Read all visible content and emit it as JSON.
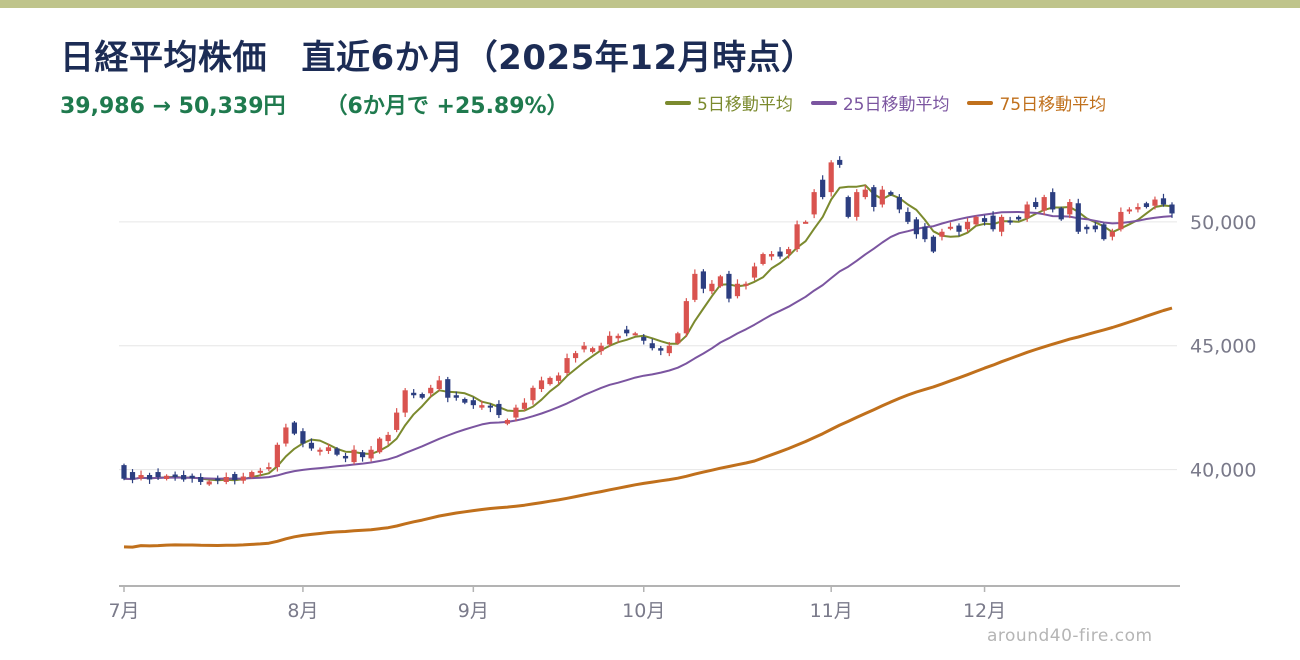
{
  "title": "日経平均株価　直近6か月（2025年12月時点）",
  "subtitle": {
    "range": "39,986 → 50,339円",
    "change": "（6か月で +25.89%）"
  },
  "legend": [
    {
      "label": "5日移動平均",
      "color": "#7b8a2e"
    },
    {
      "label": "25日移動平均",
      "color": "#7b55a0"
    },
    {
      "label": "75日移動平均",
      "color": "#c0701c"
    }
  ],
  "watermark": "around40-fire.com",
  "colors": {
    "top_bar": "#bfc48b",
    "title": "#1c2c55",
    "subtitle": "#1f7a4e",
    "up_candle": "#d9534f",
    "down_candle": "#2c3e80",
    "grid": "#e6e6e6",
    "axis": "#b3b3b3",
    "tick_text": "#7a7a8a"
  },
  "chart_data": {
    "type": "candlestick",
    "title": "日経平均株価　直近6か月（2025年12月時点）",
    "y_ticks": [
      "40,000",
      "45,000",
      "50,000"
    ],
    "y_tick_values": [
      40000,
      45000,
      50000
    ],
    "ylim": [
      35300,
      52900
    ],
    "x_tick_labels": [
      "7月",
      "8月",
      "9月",
      "10月",
      "11月",
      "12月"
    ],
    "x_tick_index": [
      0,
      21,
      41,
      61,
      83,
      101
    ],
    "grid": true,
    "legend_position": "top",
    "start_value": 39986,
    "end_value": 50339,
    "change_pct": 25.89,
    "close": [
      39630,
      39600,
      39780,
      39600,
      39700,
      39750,
      39700,
      39600,
      39650,
      39500,
      39520,
      39560,
      39700,
      39580,
      39720,
      39900,
      39950,
      40100,
      41000,
      41700,
      41450,
      41050,
      40850,
      40800,
      40900,
      40600,
      40450,
      40800,
      40500,
      40800,
      41250,
      41400,
      42300,
      43200,
      43000,
      42900,
      43300,
      43600,
      42900,
      42900,
      42700,
      42600,
      42600,
      42500,
      42200,
      42000,
      42500,
      42700,
      43300,
      43600,
      43700,
      43800,
      44500,
      44700,
      45000,
      44900,
      45000,
      45400,
      45400,
      45500,
      45500,
      45200,
      44900,
      44800,
      45000,
      45500,
      46800,
      47900,
      47300,
      47500,
      47800,
      46900,
      47500,
      47500,
      48200,
      48700,
      48700,
      48600,
      48900,
      49900,
      50000,
      51200,
      51000,
      52400,
      52300,
      50200,
      51200,
      51300,
      50600,
      51300,
      51100,
      50500,
      50000,
      49500,
      49300,
      48800,
      49600,
      49800,
      49600,
      50000,
      50200,
      50000,
      49700,
      50200,
      50000,
      50100,
      50700,
      50600,
      51000,
      50500,
      50100,
      50800,
      49600,
      49700,
      49700,
      49300,
      49600,
      50400,
      50500,
      50600,
      50600,
      50900,
      50700,
      50339
    ],
    "open": [
      40180,
      39900,
      39650,
      39780,
      39900,
      39620,
      39800,
      39780,
      39750,
      39700,
      39400,
      39640,
      39500,
      39820,
      39550,
      39700,
      39880,
      40020,
      40100,
      41050,
      41900,
      41550,
      41080,
      40750,
      40750,
      40850,
      40550,
      40300,
      40700,
      40450,
      40700,
      41150,
      41600,
      42300,
      43100,
      43050,
      43080,
      43250,
      43650,
      43000,
      42850,
      42800,
      42500,
      42580,
      42650,
      41850,
      42100,
      42450,
      42800,
      43250,
      43450,
      43580,
      43900,
      44500,
      44850,
      44750,
      44780,
      45050,
      45300,
      45650,
      45470,
      45350,
      45100,
      44900,
      44700,
      45100,
      45500,
      46850,
      48000,
      47200,
      47400,
      47900,
      47000,
      47450,
      47750,
      48300,
      48600,
      48800,
      48700,
      48900,
      50000,
      50300,
      51700,
      51200,
      52500,
      51000,
      50200,
      51000,
      51400,
      50700,
      51200,
      51000,
      50400,
      50100,
      49800,
      49400,
      49400,
      49750,
      49850,
      49700,
      49900,
      50150,
      50250,
      49600,
      50050,
      50200,
      50150,
      50800,
      50450,
      51200,
      50550,
      50300,
      50750,
      49800,
      49850,
      49900,
      49400,
      49700,
      50500,
      50500,
      50750,
      50650,
      50950,
      50700
    ]
  }
}
